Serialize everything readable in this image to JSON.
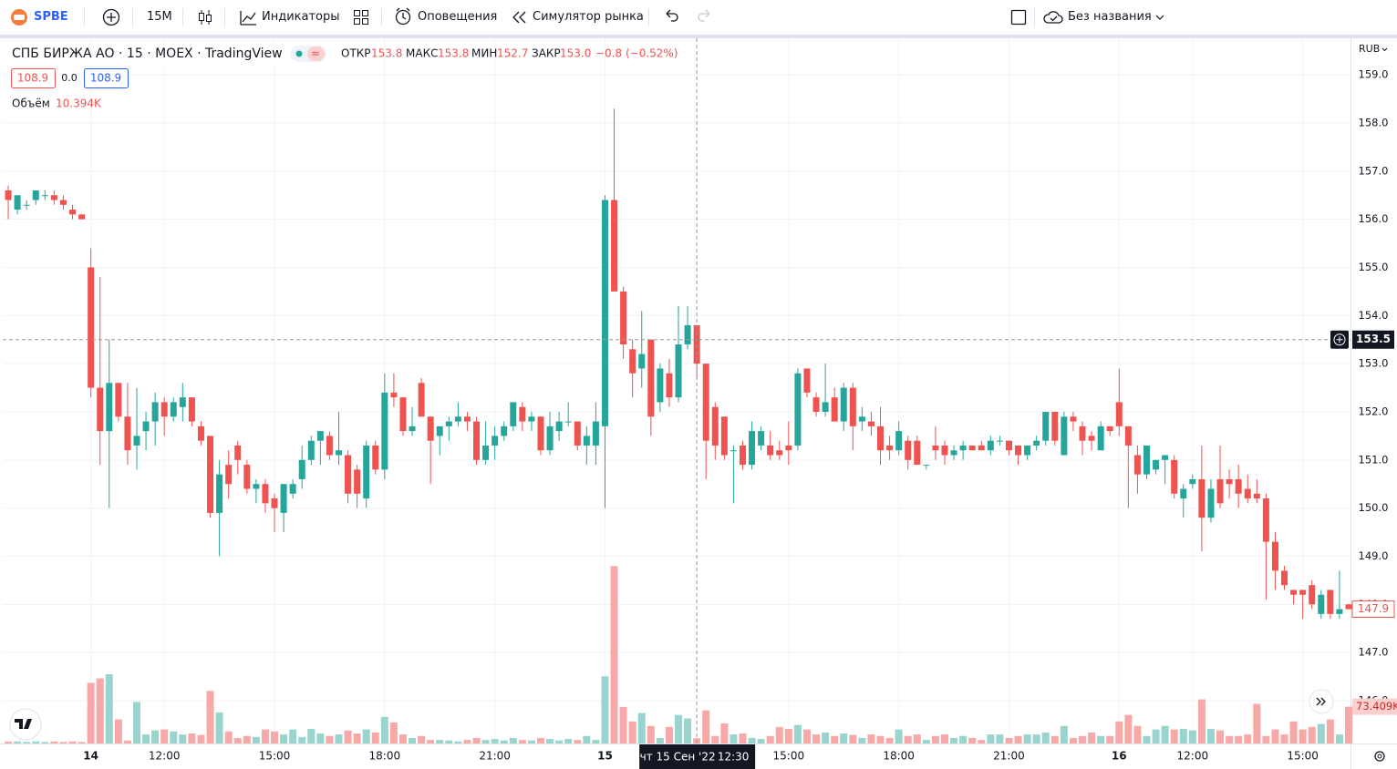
{
  "toolbar": {
    "symbol": "SPBE",
    "interval": "15М",
    "indicators": "Индикаторы",
    "alerts": "Оповещения",
    "replay": "Симулятор рынка",
    "layout": "Без названия"
  },
  "chart_data": {
    "type": "candlestick",
    "title": "СПБ БИРЖА АО · 15 · MOEX · TradingView",
    "legend": {
      "open_label": "ОТКР",
      "open": "153.8",
      "high_label": "МАКС",
      "high": "153.8",
      "low_label": "МИН",
      "low": "152.7",
      "close_label": "ЗАКР",
      "close": "153.0",
      "change": "−0.8 (−0.52%)"
    },
    "buttons": [
      "108.9",
      "0.0",
      "108.9"
    ],
    "volume_title": "Объём",
    "volume_value": "10.394K",
    "currency": "RUB",
    "up_color": "#26a69a",
    "down_color": "#ef5350",
    "volume_up_color": "#9ad4ce",
    "volume_down_color": "#f7a9a7",
    "grid": true,
    "xlim": [
      -0.6,
      146.2
    ],
    "xticks": [
      {
        "value": 9,
        "label": "14"
      },
      {
        "value": 17,
        "label": "12:00"
      },
      {
        "value": 29,
        "label": "15:00"
      },
      {
        "value": 41,
        "label": "18:00"
      },
      {
        "value": 53,
        "label": "21:00"
      },
      {
        "value": 65,
        "label": "15"
      },
      {
        "value": 85,
        "label": "15:00"
      },
      {
        "value": 97,
        "label": "18:00"
      },
      {
        "value": 109,
        "label": "21:00"
      },
      {
        "value": 121,
        "label": "16"
      },
      {
        "value": 129,
        "label": "12:00"
      },
      {
        "value": 141,
        "label": "15:00"
      }
    ],
    "ylim": [
      145.11,
      159.76
    ],
    "yticks": [
      {
        "value": 146,
        "label": "146.0"
      },
      {
        "value": 147,
        "label": "147.0"
      },
      {
        "value": 148,
        "label": "148.0"
      },
      {
        "value": 149,
        "label": "149.0"
      },
      {
        "value": 150,
        "label": "150.0"
      },
      {
        "value": 151,
        "label": "151.0"
      },
      {
        "value": 152,
        "label": "152.0"
      },
      {
        "value": 153,
        "label": "153.0"
      },
      {
        "value": 154,
        "label": "154.0"
      },
      {
        "value": 155,
        "label": "155.0"
      },
      {
        "value": 156,
        "label": "156.0"
      },
      {
        "value": 157,
        "label": "157.0"
      },
      {
        "value": 158,
        "label": "158.0"
      },
      {
        "value": 159,
        "label": "159.0"
      }
    ],
    "volume_ylim": [
      0,
      400
    ],
    "open": [
      156.6,
      156.2,
      156.3,
      156.4,
      156.5,
      156.5,
      156.4,
      156.2,
      156.1,
      155.0,
      152.5,
      151.6,
      152.6,
      151.9,
      151.3,
      151.6,
      151.8,
      152.2,
      151.9,
      152.1,
      152.3,
      151.7,
      151.5,
      149.9,
      150.9,
      151.3,
      150.9,
      150.4,
      150.5,
      150.2,
      149.9,
      150.3,
      150.6,
      151.0,
      151.4,
      151.5,
      151.1,
      151.1,
      150.8,
      150.2,
      151.3,
      150.8,
      152.4,
      152.3,
      151.6,
      152.6,
      151.9,
      151.5,
      151.7,
      151.8,
      151.9,
      151.8,
      151.0,
      151.3,
      151.5,
      151.7,
      152.1,
      151.8,
      151.9,
      151.2,
      151.6,
      151.8,
      151.8,
      151.3,
      151.3,
      151.7,
      156.4,
      154.5,
      153.3,
      152.9,
      153.5,
      152.2,
      152.8,
      152.3,
      153.4,
      153.8,
      153.0,
      152.1,
      151.9,
      151.2,
      151.3,
      150.9,
      151.3,
      151.3,
      151.2,
      151.3,
      151.3,
      152.9,
      152.3,
      152.0,
      152.3,
      151.8,
      152.5,
      151.8,
      151.8,
      151.7,
      151.3,
      151.2,
      151.4,
      151.4,
      150.9,
      151.3,
      151.3,
      151.1,
      151.2,
      151.3,
      151.3,
      151.2,
      151.4,
      151.4,
      151.3,
      151.1,
      151.3,
      151.4,
      152.0,
      151.1,
      151.9,
      151.7,
      151.5,
      151.2,
      151.7,
      152.2,
      151.7,
      151.1,
      150.7,
      150.8,
      151.0,
      151.0,
      150.2,
      150.5,
      150.6,
      149.8,
      150.6,
      150.6,
      150.6,
      150.4,
      150.3,
      150.2,
      149.3,
      148.7,
      148.3,
      148.3,
      148.4,
      147.8,
      148.3,
      147.8,
      148.0
    ],
    "high": [
      156.7,
      156.5,
      156.4,
      156.6,
      156.6,
      156.6,
      156.5,
      156.3,
      156.1,
      155.4,
      154.8,
      153.5,
      152.6,
      152.6,
      152.5,
      152.0,
      152.4,
      152.3,
      152.3,
      152.6,
      152.3,
      151.8,
      151.5,
      151.0,
      151.2,
      151.4,
      151.0,
      150.6,
      150.6,
      150.3,
      150.5,
      150.6,
      151.3,
      151.5,
      151.6,
      151.6,
      152.0,
      151.2,
      150.9,
      151.4,
      151.4,
      152.8,
      152.8,
      152.3,
      152.1,
      152.7,
      151.9,
      151.7,
      151.9,
      152.2,
      152.0,
      151.9,
      151.8,
      151.7,
      151.8,
      152.2,
      152.2,
      152.0,
      151.9,
      152.0,
      152.0,
      152.2,
      151.8,
      151.7,
      152.2,
      156.5,
      158.3,
      154.6,
      153.5,
      154.1,
      153.5,
      153.0,
      153.1,
      154.2,
      154.2,
      153.8,
      153.0,
      152.2,
      151.9,
      151.3,
      151.4,
      151.8,
      151.7,
      151.6,
      151.4,
      151.8,
      152.9,
      152.9,
      152.4,
      153.0,
      152.5,
      152.6,
      152.6,
      152.1,
      152.0,
      152.1,
      151.5,
      151.8,
      151.5,
      151.5,
      150.9,
      151.7,
      151.4,
      151.3,
      151.4,
      151.3,
      151.4,
      151.5,
      151.5,
      151.4,
      151.3,
      151.3,
      151.5,
      152.0,
      152.0,
      152.0,
      152.0,
      151.8,
      151.6,
      151.8,
      151.7,
      152.9,
      151.7,
      151.3,
      151.3,
      151.0,
      151.1,
      151.1,
      150.5,
      150.7,
      151.3,
      150.6,
      151.3,
      150.8,
      150.9,
      150.7,
      150.6,
      150.3,
      149.5,
      148.8,
      148.3,
      148.3,
      148.5,
      148.3,
      148.3,
      148.7,
      148.0
    ],
    "low": [
      156.0,
      156.1,
      156.2,
      156.3,
      156.4,
      156.3,
      156.2,
      156.0,
      156.0,
      152.3,
      150.9,
      150.0,
      151.8,
      150.9,
      150.8,
      151.2,
      151.3,
      151.5,
      151.8,
      151.8,
      151.7,
      151.3,
      149.8,
      149.0,
      150.2,
      150.7,
      150.3,
      150.1,
      149.9,
      149.5,
      149.5,
      150.2,
      150.4,
      150.9,
      150.9,
      151.0,
      150.9,
      150.1,
      150.0,
      150.0,
      150.7,
      150.6,
      152.1,
      151.5,
      151.5,
      151.9,
      150.5,
      151.1,
      151.4,
      151.7,
      151.6,
      150.9,
      150.9,
      151.0,
      151.4,
      151.6,
      151.6,
      151.6,
      151.1,
      151.1,
      151.4,
      151.7,
      151.2,
      150.9,
      150.9,
      150.0,
      154.5,
      153.1,
      152.3,
      152.5,
      151.5,
      152.0,
      152.1,
      152.2,
      153.3,
      152.7,
      150.6,
      151.0,
      151.0,
      150.1,
      150.8,
      150.8,
      151.2,
      151.0,
      151.0,
      150.9,
      151.2,
      152.3,
      151.9,
      151.9,
      151.8,
      151.6,
      151.2,
      151.6,
      151.5,
      150.9,
      151.0,
      151.1,
      150.8,
      150.9,
      150.8,
      151.0,
      150.9,
      151.0,
      151.0,
      151.2,
      151.2,
      151.1,
      151.3,
      151.1,
      150.9,
      151.0,
      151.2,
      151.3,
      151.3,
      151.1,
      151.6,
      151.1,
      151.2,
      151.2,
      151.5,
      151.5,
      150.0,
      150.3,
      150.6,
      150.7,
      150.5,
      150.2,
      149.8,
      150.4,
      149.1,
      149.7,
      150.0,
      150.2,
      150.0,
      150.1,
      150.1,
      148.1,
      148.3,
      148.3,
      148.0,
      147.7,
      147.9,
      147.7,
      147.7,
      147.7,
      147.9
    ],
    "close": [
      156.4,
      156.5,
      156.3,
      156.6,
      156.5,
      156.4,
      156.3,
      156.1,
      156.0,
      152.5,
      151.6,
      152.6,
      151.9,
      151.2,
      151.5,
      151.8,
      152.2,
      151.9,
      152.2,
      152.3,
      151.8,
      151.4,
      149.9,
      150.7,
      150.5,
      151.0,
      150.4,
      150.5,
      150.1,
      150.0,
      150.5,
      150.5,
      151.0,
      151.4,
      151.6,
      151.1,
      151.2,
      150.3,
      150.3,
      151.3,
      150.8,
      152.4,
      152.3,
      151.6,
      151.7,
      151.9,
      151.4,
      151.7,
      151.8,
      151.9,
      151.8,
      151.0,
      151.3,
      151.5,
      151.7,
      152.2,
      151.8,
      151.9,
      151.2,
      151.7,
      151.8,
      151.8,
      151.3,
      151.5,
      151.8,
      156.4,
      154.5,
      153.4,
      152.8,
      153.2,
      151.9,
      152.9,
      152.3,
      153.4,
      153.8,
      153.0,
      151.4,
      151.3,
      151.1,
      151.2,
      150.9,
      151.6,
      151.6,
      151.1,
      151.1,
      151.2,
      152.8,
      152.4,
      152.0,
      152.2,
      151.8,
      152.5,
      151.7,
      151.9,
      151.7,
      151.2,
      151.2,
      151.6,
      151.0,
      150.9,
      150.9,
      151.2,
      151.1,
      151.2,
      151.3,
      151.2,
      151.2,
      151.4,
      151.4,
      151.2,
      151.1,
      151.3,
      151.4,
      152.0,
      151.4,
      151.9,
      151.8,
      151.4,
      151.4,
      151.7,
      151.6,
      151.7,
      151.3,
      150.7,
      151.3,
      151.0,
      151.1,
      150.3,
      150.4,
      150.6,
      149.8,
      150.4,
      150.1,
      150.5,
      150.3,
      150.2,
      150.2,
      149.3,
      148.7,
      148.4,
      148.2,
      148.2,
      148.0,
      148.2,
      147.8,
      147.9,
      147.9
    ],
    "volume": [
      4,
      4,
      3,
      4,
      3,
      4,
      3,
      4,
      3,
      121,
      130,
      138,
      48,
      6,
      83,
      18,
      26,
      28,
      24,
      18,
      20,
      17,
      105,
      62,
      24,
      11,
      15,
      13,
      28,
      24,
      18,
      28,
      13,
      29,
      20,
      15,
      18,
      26,
      20,
      28,
      22,
      53,
      42,
      18,
      11,
      15,
      7,
      7,
      6,
      4,
      7,
      11,
      7,
      9,
      6,
      11,
      7,
      6,
      11,
      9,
      6,
      9,
      7,
      15,
      7,
      134,
      354,
      73,
      44,
      61,
      35,
      11,
      33,
      57,
      50,
      10.394,
      66,
      15,
      40,
      18,
      20,
      11,
      9,
      15,
      33,
      29,
      37,
      28,
      18,
      22,
      15,
      20,
      17,
      11,
      18,
      15,
      11,
      28,
      15,
      18,
      7,
      15,
      18,
      11,
      15,
      11,
      7,
      18,
      18,
      11,
      15,
      18,
      18,
      22,
      15,
      35,
      11,
      15,
      22,
      15,
      15,
      44,
      57,
      35,
      15,
      28,
      35,
      28,
      29,
      26,
      88,
      29,
      26,
      15,
      15,
      18,
      79,
      15,
      28,
      18,
      44,
      28,
      33,
      39,
      48,
      18,
      73.409
    ],
    "volume_last_label": "73.409K",
    "last_price": {
      "value": 147.9,
      "label": "147.9"
    },
    "crosshair": {
      "price": {
        "value": 153.5,
        "label": "153.5"
      },
      "index": 75,
      "date": "чт 15 Сен '22",
      "time": "12:30"
    }
  }
}
